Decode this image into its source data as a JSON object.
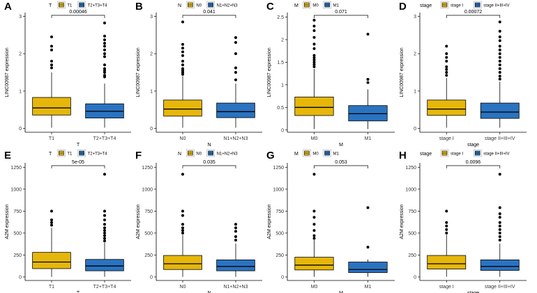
{
  "colors": {
    "group1": "#e6b70a",
    "group2": "#2a73c1",
    "axis": "#000000",
    "outlier": "#000000"
  },
  "chart_data": [
    {
      "type": "boxplot",
      "panel_label": "A",
      "legend_title": "T",
      "groups": [
        "T1",
        "T2+T3+T4"
      ],
      "xlabel": "T",
      "ylabel": "LINC00987 expression",
      "ylim": [
        -0.1,
        3.1
      ],
      "yticks": [
        0,
        1,
        2,
        3
      ],
      "pvalue": "0.00046",
      "boxes": [
        {
          "whisker_low": 0.02,
          "q1": 0.36,
          "median": 0.55,
          "q3": 0.83,
          "whisker_high": 1.5,
          "outliers": [
            1.62,
            1.7,
            1.8,
            2.1,
            2.2,
            2.45
          ]
        },
        {
          "whisker_low": 0.02,
          "q1": 0.28,
          "median": 0.46,
          "q3": 0.66,
          "whisker_high": 1.2,
          "outliers": [
            1.38,
            1.42,
            1.5,
            1.55,
            1.6,
            1.7,
            1.92,
            2.0,
            2.1,
            2.2,
            2.28,
            2.37,
            2.47,
            2.82
          ]
        }
      ]
    },
    {
      "type": "boxplot",
      "panel_label": "B",
      "legend_title": "N",
      "groups": [
        "N0",
        "N1+N2+N3"
      ],
      "xlabel": "N",
      "ylabel": "LINC00987 expression",
      "ylim": [
        -0.1,
        3.1
      ],
      "yticks": [
        0,
        1,
        2,
        3
      ],
      "pvalue": "0.041",
      "boxes": [
        {
          "whisker_low": 0.02,
          "q1": 0.33,
          "median": 0.52,
          "q3": 0.76,
          "whisker_high": 1.4,
          "outliers": [
            1.45,
            1.5,
            1.55,
            1.6,
            1.7,
            1.8,
            1.95,
            2.05,
            2.15,
            2.25,
            2.85
          ]
        },
        {
          "whisker_low": 0.02,
          "q1": 0.29,
          "median": 0.45,
          "q3": 0.68,
          "whisker_high": 1.2,
          "outliers": [
            1.3,
            1.5,
            1.62,
            2.0,
            2.3,
            2.43
          ]
        }
      ]
    },
    {
      "type": "boxplot",
      "panel_label": "C",
      "legend_title": "M",
      "groups": [
        "M0",
        "M1"
      ],
      "xlabel": "M",
      "ylabel": "LINC00987 expression",
      "ylim": [
        -0.05,
        2.6
      ],
      "yticks": [
        0,
        0.5,
        1,
        1.5,
        2,
        2.5
      ],
      "pvalue": "0.071",
      "boxes": [
        {
          "whisker_low": 0.02,
          "q1": 0.32,
          "median": 0.5,
          "q3": 0.73,
          "whisker_high": 1.35,
          "outliers": [
            1.4,
            1.45,
            1.5,
            1.55,
            1.6,
            1.65,
            1.8,
            1.9,
            2.05,
            2.2,
            2.3,
            2.43
          ]
        },
        {
          "whisker_low": 0.02,
          "q1": 0.2,
          "median": 0.36,
          "q3": 0.54,
          "whisker_high": 0.9,
          "outliers": [
            1.05,
            1.12,
            2.12
          ]
        }
      ]
    },
    {
      "type": "boxplot",
      "panel_label": "D",
      "legend_title": "stage",
      "groups": [
        "stage I",
        "stage II+III+IV"
      ],
      "xlabel": "stage",
      "ylabel": "LINC00987 expression",
      "ylim": [
        -0.1,
        3.1
      ],
      "yticks": [
        0,
        1,
        2,
        3
      ],
      "pvalue": "0.00072",
      "boxes": [
        {
          "whisker_low": 0.02,
          "q1": 0.35,
          "median": 0.52,
          "q3": 0.76,
          "whisker_high": 1.35,
          "outliers": [
            1.42,
            1.5,
            1.58,
            1.65,
            1.8,
            1.9,
            2.0,
            2.2
          ]
        },
        {
          "whisker_low": 0.02,
          "q1": 0.27,
          "median": 0.44,
          "q3": 0.68,
          "whisker_high": 1.25,
          "outliers": [
            1.32,
            1.4,
            1.5,
            1.6,
            1.7,
            1.8,
            1.9,
            2.0,
            2.1,
            2.2,
            2.35,
            2.45,
            2.6,
            2.85
          ]
        }
      ]
    },
    {
      "type": "boxplot",
      "panel_label": "E",
      "legend_title": "T",
      "groups": [
        "T1",
        "T2+T3+T4"
      ],
      "xlabel": "T",
      "ylabel": "A2M expression",
      "ylim": [
        -40,
        1300
      ],
      "yticks": [
        0,
        250,
        500,
        750,
        1000,
        1250
      ],
      "pvalue": "5e-05",
      "boxes": [
        {
          "whisker_low": 2,
          "q1": 95,
          "median": 170,
          "q3": 280,
          "whisker_high": 560,
          "outliers": [
            590,
            620,
            650,
            750
          ]
        },
        {
          "whisker_low": 2,
          "q1": 70,
          "median": 125,
          "q3": 200,
          "whisker_high": 390,
          "outliers": [
            410,
            440,
            470,
            500,
            530,
            560,
            600,
            650,
            700,
            750,
            1170
          ]
        }
      ]
    },
    {
      "type": "boxplot",
      "panel_label": "F",
      "legend_title": "N",
      "groups": [
        "N0",
        "N1+N2+N3"
      ],
      "xlabel": "N",
      "ylabel": "A2M expression",
      "ylim": [
        -40,
        1300
      ],
      "yticks": [
        0,
        250,
        500,
        750,
        1000,
        1250
      ],
      "pvalue": "0.035",
      "boxes": [
        {
          "whisker_low": 2,
          "q1": 85,
          "median": 150,
          "q3": 245,
          "whisker_high": 480,
          "outliers": [
            500,
            530,
            560,
            600,
            700,
            750,
            1170
          ]
        },
        {
          "whisker_low": 2,
          "q1": 70,
          "median": 120,
          "q3": 195,
          "whisker_high": 380,
          "outliers": [
            420,
            460,
            520,
            560,
            600
          ]
        }
      ]
    },
    {
      "type": "boxplot",
      "panel_label": "G",
      "legend_title": "M",
      "groups": [
        "M0",
        "M1"
      ],
      "xlabel": "M",
      "ylabel": "A2M expression",
      "ylim": [
        -40,
        1300
      ],
      "yticks": [
        0,
        250,
        500,
        750,
        1000,
        1250
      ],
      "pvalue": "0.053",
      "boxes": [
        {
          "whisker_low": 2,
          "q1": 80,
          "median": 135,
          "q3": 225,
          "whisker_high": 420,
          "outliers": [
            440,
            470,
            530,
            600,
            680,
            750,
            1170
          ]
        },
        {
          "whisker_low": 2,
          "q1": 50,
          "median": 85,
          "q3": 170,
          "whisker_high": 200,
          "outliers": [
            340,
            790
          ]
        }
      ]
    },
    {
      "type": "boxplot",
      "panel_label": "H",
      "legend_title": "stage",
      "groups": [
        "stage I",
        "stage II+III+IV"
      ],
      "xlabel": "stage",
      "ylabel": "A2M expression",
      "ylim": [
        -40,
        1300
      ],
      "yticks": [
        0,
        250,
        500,
        750,
        1000,
        1250
      ],
      "pvalue": "0.0096",
      "boxes": [
        {
          "whisker_low": 2,
          "q1": 90,
          "median": 150,
          "q3": 245,
          "whisker_high": 480,
          "outliers": [
            500,
            540,
            580,
            620,
            750
          ]
        },
        {
          "whisker_low": 2,
          "q1": 75,
          "median": 120,
          "q3": 195,
          "whisker_high": 380,
          "outliers": [
            420,
            460,
            500,
            540,
            580,
            620,
            680,
            720,
            790,
            1170
          ]
        }
      ]
    }
  ]
}
